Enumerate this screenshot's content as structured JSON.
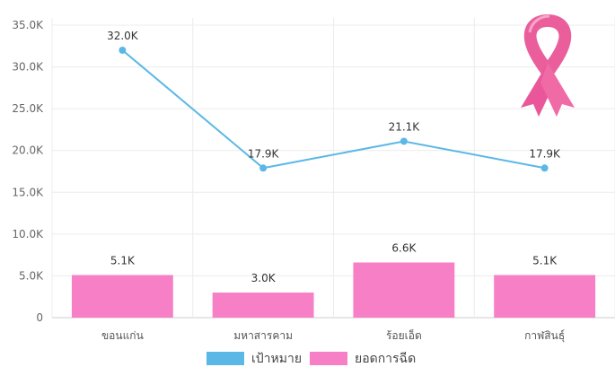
{
  "chart_data": {
    "type": "bar",
    "categories": [
      "ขอนแก่น",
      "มหาสารคาม",
      "ร้อยเอ็ด",
      "กาฬสินธุ์"
    ],
    "series": [
      {
        "name": "เป้าหมาย",
        "type": "line",
        "color": "#5bb8e6",
        "values": [
          32000,
          17900,
          21100,
          17900
        ],
        "labels": [
          "32.0K",
          "17.9K",
          "21.1K",
          "17.9K"
        ]
      },
      {
        "name": "ยอดการฉีด",
        "type": "bar",
        "color": "#f77fc6",
        "values": [
          5100,
          3000,
          6600,
          5100
        ],
        "labels": [
          "5.1K",
          "3.0K",
          "6.6K",
          "5.1K"
        ]
      }
    ],
    "y_ticks": [
      "0",
      "5.0K",
      "10.0K",
      "15.0K",
      "20.0K",
      "25.0K",
      "30.0K",
      "35.0K"
    ],
    "ylim": [
      0,
      35000
    ],
    "grid": true,
    "legend_position": "bottom",
    "decoration": "pink-ribbon-icon"
  }
}
